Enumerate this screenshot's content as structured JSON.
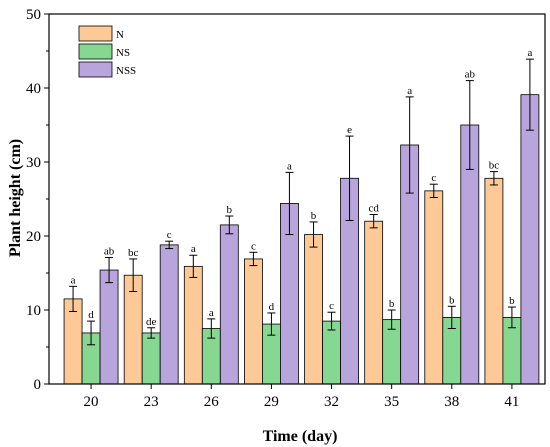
{
  "chart_data": {
    "type": "bar",
    "xlabel": "Time (day)",
    "ylabel": "Plant height (cm)",
    "ylim": [
      0,
      50
    ],
    "yticks": [
      0,
      10,
      20,
      30,
      40,
      50
    ],
    "categories": [
      "20",
      "23",
      "26",
      "29",
      "32",
      "35",
      "38",
      "41"
    ],
    "legend_position": "top-left",
    "series": [
      {
        "name": "N",
        "color": "#fdc997",
        "values": [
          11.5,
          14.7,
          15.9,
          16.9,
          20.2,
          22.0,
          26.1,
          27.8
        ],
        "errors": [
          1.7,
          2.2,
          1.5,
          0.9,
          1.7,
          0.9,
          0.9,
          0.9
        ],
        "labels": [
          "a",
          "bc",
          "a",
          "c",
          "b",
          "cd",
          "c",
          "bc"
        ]
      },
      {
        "name": "NS",
        "color": "#86d792",
        "values": [
          6.9,
          6.9,
          7.5,
          8.1,
          8.5,
          8.7,
          9.0,
          9.0
        ],
        "errors": [
          1.6,
          0.7,
          1.3,
          1.5,
          1.2,
          1.3,
          1.5,
          1.4
        ],
        "labels": [
          "d",
          "de",
          "a",
          "d",
          "c",
          "b",
          "b",
          "b"
        ]
      },
      {
        "name": "NSS",
        "color": "#b8a5dc",
        "values": [
          15.4,
          18.8,
          21.5,
          24.4,
          27.8,
          32.3,
          35.0,
          39.1
        ],
        "errors": [
          1.7,
          0.5,
          1.2,
          4.2,
          5.7,
          6.5,
          6.0,
          4.8
        ],
        "labels": [
          "ab",
          "c",
          "b",
          "a",
          "e",
          "a",
          "ab",
          "a"
        ]
      }
    ]
  }
}
